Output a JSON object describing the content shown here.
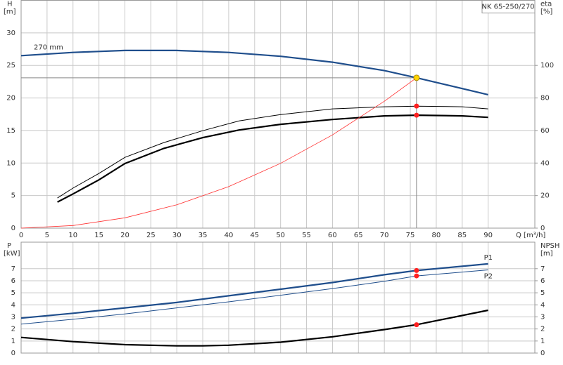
{
  "chart_data": [
    {
      "type": "line",
      "title": "NK 65-250/270",
      "y_label": "H",
      "y_unit": "[m]",
      "y2_label": "eta",
      "y2_unit": "[%]",
      "x_label": "Q [m³/h]",
      "xlim": [
        0,
        99
      ],
      "xticks": [
        0,
        5,
        10,
        15,
        20,
        25,
        30,
        35,
        40,
        45,
        50,
        55,
        60,
        65,
        70,
        75,
        80,
        85,
        90
      ],
      "ylim": [
        0,
        35
      ],
      "yticks": [
        0,
        5,
        10,
        15,
        20,
        25,
        30
      ],
      "y2lim": [
        0,
        140
      ],
      "y2ticks": [
        0,
        20,
        40,
        60,
        80,
        100
      ],
      "grid": true,
      "operating_point": {
        "x": 76.2,
        "y": 23.1,
        "color": "#ffd400"
      },
      "series": [
        {
          "name": "270 mm",
          "color": "#1f4e8c",
          "width": 2.2,
          "x": [
            0,
            10,
            20,
            25,
            30,
            40,
            50,
            60,
            70,
            76.2,
            90
          ],
          "values": [
            26.5,
            27.0,
            27.3,
            27.3,
            27.3,
            27.0,
            26.4,
            25.5,
            24.2,
            23.1,
            20.5
          ]
        },
        {
          "color": "#000000",
          "width": 1,
          "axis": "y2",
          "x": [
            7,
            10,
            15,
            20,
            27.5,
            35,
            42,
            50,
            60,
            70,
            76.2,
            85,
            90
          ],
          "values": [
            18.5,
            24.6,
            33.6,
            43.5,
            52.6,
            59.9,
            65.9,
            69.8,
            73.3,
            74.6,
            75,
            74.6,
            73.3
          ],
          "point": {
            "x": 76.2,
            "value": 75,
            "color": "#ff2020"
          }
        },
        {
          "color": "#000000",
          "width": 2.2,
          "axis": "y2",
          "x": [
            7,
            10,
            15,
            20,
            27.5,
            35,
            42,
            50,
            60,
            70,
            76.2,
            85,
            90
          ],
          "values": [
            16,
            21,
            29.7,
            39.7,
            49,
            55.6,
            60.3,
            63.8,
            66.8,
            69,
            69.4,
            69,
            68.1
          ],
          "point": {
            "x": 76.2,
            "value": 69.4,
            "color": "#ff2020"
          }
        },
        {
          "color": "#ff3030",
          "width": 0.8,
          "x": [
            0,
            10,
            20,
            30,
            40,
            50,
            60,
            70,
            76.2
          ],
          "values": [
            0,
            0.4,
            1.59,
            3.58,
            6.37,
            9.95,
            14.32,
            19.5,
            23.1
          ]
        }
      ]
    },
    {
      "type": "line",
      "y_label": "P",
      "y_unit": "[kW]",
      "y2_label": "NPSH",
      "y2_unit": "[m]",
      "xlim": [
        0,
        99
      ],
      "xgrid": [
        0,
        5,
        10,
        15,
        20,
        25,
        30,
        35,
        40,
        45,
        50,
        55,
        60,
        65,
        70,
        75,
        80,
        85,
        90
      ],
      "ylim": [
        0,
        9.2
      ],
      "yticks": [
        0,
        1,
        2,
        3,
        4,
        5,
        6,
        7
      ],
      "y2lim": [
        0,
        9.2
      ],
      "y2ticks": [
        0,
        1,
        2,
        3,
        4,
        5,
        6,
        7
      ],
      "grid": true,
      "series": [
        {
          "name": "P1",
          "color": "#1f4e8c",
          "width": 2.2,
          "x": [
            0,
            10,
            20,
            30,
            40,
            50,
            60,
            70,
            76.2,
            90
          ],
          "values": [
            2.9,
            3.3,
            3.75,
            4.2,
            4.75,
            5.3,
            5.85,
            6.5,
            6.85,
            7.4
          ],
          "point": {
            "x": 76.2,
            "value": 6.85,
            "color": "#ff2020"
          }
        },
        {
          "name": "P2",
          "color": "#1f4e8c",
          "width": 1,
          "x": [
            0,
            10,
            20,
            30,
            40,
            50,
            60,
            70,
            76.2,
            90
          ],
          "values": [
            2.4,
            2.8,
            3.25,
            3.75,
            4.25,
            4.8,
            5.35,
            5.95,
            6.4,
            6.9
          ],
          "point": {
            "x": 76.2,
            "value": 6.4,
            "color": "#ff2020"
          }
        },
        {
          "color": "#000000",
          "width": 2.2,
          "axis": "y2",
          "x": [
            0,
            10,
            20,
            30,
            35,
            40,
            50,
            60,
            70,
            76.2,
            90
          ],
          "values": [
            1.3,
            0.95,
            0.7,
            0.6,
            0.6,
            0.65,
            0.9,
            1.35,
            1.95,
            2.35,
            3.55
          ],
          "point": {
            "x": 76.2,
            "value": 2.35,
            "color": "#ff2020"
          }
        }
      ]
    }
  ]
}
